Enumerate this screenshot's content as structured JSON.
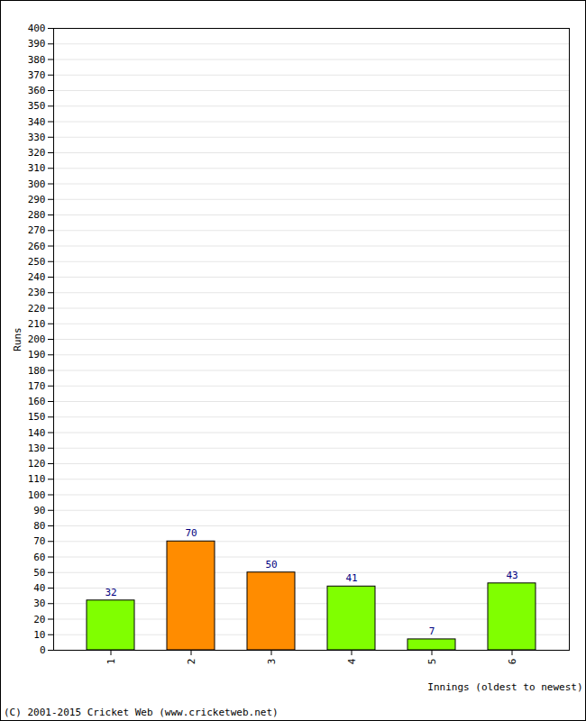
{
  "chart_data": {
    "type": "bar",
    "categories": [
      "1",
      "2",
      "3",
      "4",
      "5",
      "6"
    ],
    "values": [
      32,
      70,
      50,
      41,
      7,
      43
    ],
    "colors": [
      "#80ff00",
      "#ff8c00",
      "#ff8c00",
      "#80ff00",
      "#80ff00",
      "#80ff00"
    ],
    "x_label": "Innings (oldest to newest)",
    "y_label": "Runs",
    "ylim": [
      0,
      400
    ],
    "yticks": [
      0,
      10,
      20,
      30,
      40,
      50,
      60,
      70,
      80,
      90,
      100,
      110,
      120,
      130,
      140,
      150,
      160,
      170,
      180,
      190,
      200,
      210,
      220,
      230,
      240,
      250,
      260,
      270,
      280,
      290,
      300,
      310,
      320,
      330,
      340,
      350,
      360,
      370,
      380,
      390,
      400
    ],
    "grid": true,
    "data_labels": true,
    "annotations": [
      "(C) 2001-2015 Cricket Web (www.cricketweb.net)"
    ]
  }
}
